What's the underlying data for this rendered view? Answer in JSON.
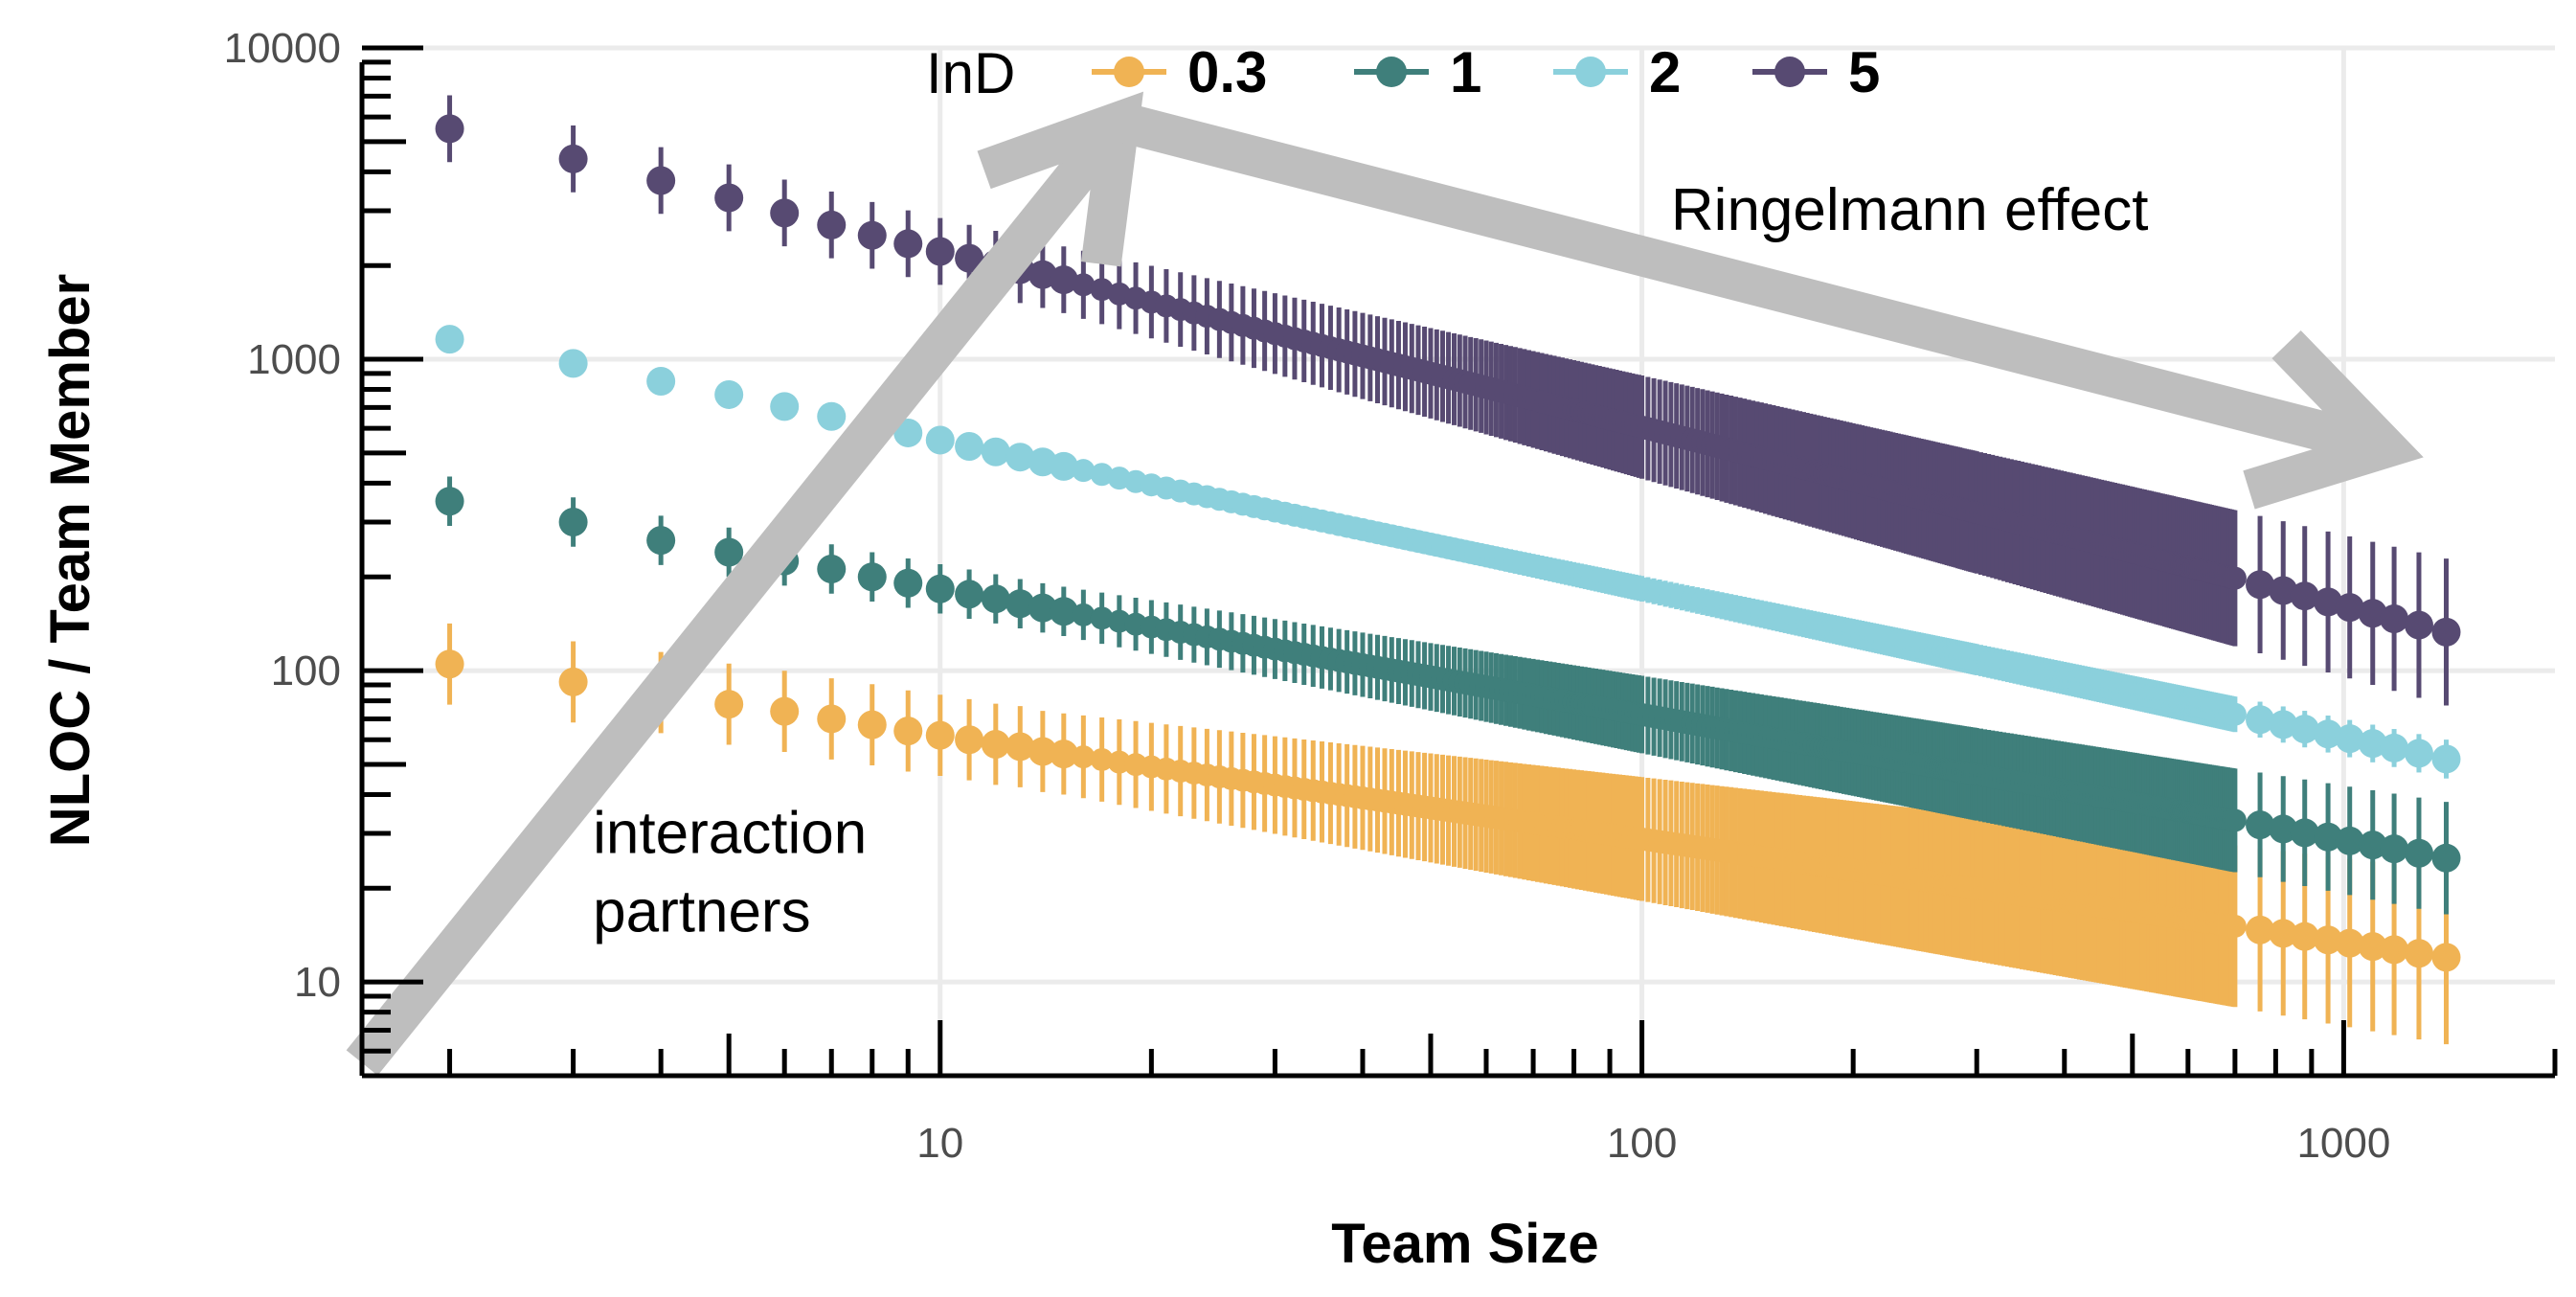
{
  "chart_data": {
    "type": "scatter",
    "xlabel": "Team Size",
    "ylabel": "NLOC / Team Member",
    "x_scale": "log",
    "y_scale": "log",
    "xlim": [
      1.5,
      2000
    ],
    "ylim": [
      5,
      10000
    ],
    "x_ticks": [
      10,
      100,
      1000
    ],
    "x_tick_labels": [
      "10",
      "100",
      "1000"
    ],
    "y_ticks": [
      10,
      100,
      1000,
      10000
    ],
    "y_tick_labels": [
      "10",
      "100",
      "1000",
      "10000"
    ],
    "grid": true,
    "legend": {
      "title": "InD",
      "position": "top"
    },
    "x": [
      2,
      3,
      4,
      5,
      6,
      7,
      8,
      9,
      10,
      11,
      12,
      13,
      14,
      15
    ],
    "series": [
      {
        "name": "0.3",
        "color": "#F0B354",
        "values": [
          105,
          92,
          85,
          78,
          74,
          70,
          67,
          64,
          62,
          60,
          58,
          57,
          55,
          54
        ],
        "end_x": 1400,
        "end_value": 12,
        "error_ratio": 1.35
      },
      {
        "name": "1",
        "color": "#3F7F7B",
        "values": [
          350,
          300,
          262,
          240,
          225,
          212,
          200,
          191,
          183,
          176,
          170,
          164,
          159,
          155
        ],
        "end_x": 1400,
        "end_value": 25,
        "error_ratio": 1.2
      },
      {
        "name": "2",
        "color": "#8BD0DC",
        "values": [
          1160,
          970,
          850,
          770,
          705,
          655,
          615,
          580,
          550,
          525,
          504,
          485,
          468,
          453
        ],
        "end_x": 1400,
        "end_value": 52,
        "error_ratio": 1.06
      },
      {
        "name": "5",
        "color": "#574A72",
        "values": [
          5500,
          4400,
          3750,
          3300,
          2950,
          2700,
          2500,
          2350,
          2220,
          2110,
          2020,
          1940,
          1870,
          1800
        ],
        "end_x": 1400,
        "end_value": 133,
        "error_ratio": 1.28
      }
    ],
    "annotations": [
      {
        "text": "Ringelmann effect",
        "x": 110,
        "y": 2600
      },
      {
        "text": "interaction",
        "x": 3.2,
        "y": 26
      },
      {
        "text": "partners",
        "x": 3.2,
        "y": 14.5
      }
    ],
    "arrows": [
      {
        "from": [
          1.5,
          5.5
        ],
        "to": [
          18,
          5800
        ]
      },
      {
        "from": [
          18,
          5800
        ],
        "to": [
          1150,
          520
        ]
      }
    ]
  }
}
